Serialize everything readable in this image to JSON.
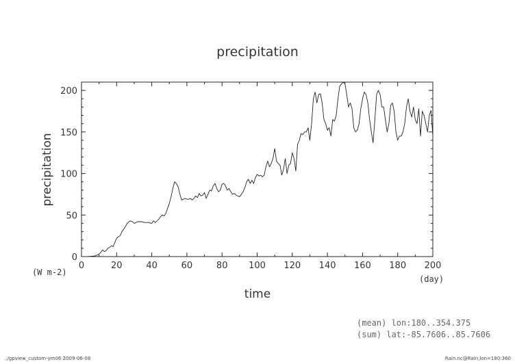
{
  "chart_data": {
    "type": "line",
    "title": "precipitation",
    "xlabel": "time",
    "ylabel": "precipitation",
    "x_unit": "(day)",
    "y_unit": "(W m-2)",
    "xlim": [
      0,
      200
    ],
    "ylim": [
      0,
      210
    ],
    "xticks": [
      0,
      20,
      40,
      60,
      80,
      100,
      120,
      140,
      160,
      180,
      200
    ],
    "yticks": [
      0,
      50,
      100,
      150,
      200
    ],
    "grid": false,
    "series": [
      {
        "x": [
          0,
          2,
          4,
          6,
          8,
          10,
          11,
          12,
          13,
          14,
          15,
          16,
          17,
          18,
          19,
          20,
          21,
          22,
          23,
          24,
          25,
          26,
          27,
          28,
          29,
          30,
          32,
          34,
          36,
          38,
          40,
          41,
          42,
          43,
          44,
          45,
          46,
          47,
          48,
          49,
          50,
          51,
          52,
          53,
          54,
          55,
          56,
          57,
          58,
          59,
          60,
          61,
          62,
          63,
          64,
          65,
          66,
          67,
          68,
          69,
          70,
          71,
          72,
          73,
          74,
          75,
          76,
          77,
          78,
          79,
          80,
          81,
          82,
          83,
          84,
          85,
          86,
          87,
          88,
          89,
          90,
          91,
          92,
          93,
          94,
          95,
          96,
          97,
          98,
          99,
          100,
          101,
          102,
          103,
          104,
          105,
          106,
          107,
          108,
          109,
          110,
          111,
          112,
          113,
          114,
          115,
          116,
          117,
          118,
          119,
          120,
          121,
          122,
          123,
          124,
          125,
          126,
          127,
          128,
          129,
          130,
          131,
          132,
          133,
          134,
          135,
          136,
          137,
          138,
          139,
          140,
          141,
          142,
          143,
          144,
          145,
          146,
          147,
          148,
          149,
          150,
          151,
          152,
          153,
          154,
          155,
          156,
          157,
          158,
          159,
          160,
          161,
          162,
          163,
          164,
          165,
          166,
          167,
          168,
          169,
          170,
          171,
          172,
          173,
          174,
          175,
          176,
          177,
          178,
          179,
          180,
          181,
          182,
          183,
          184,
          185,
          186,
          187,
          188,
          189,
          190,
          191,
          192,
          193,
          194,
          195,
          196,
          197,
          198,
          199,
          200
        ],
        "values": [
          0,
          0,
          0,
          0.5,
          1,
          3,
          5,
          8,
          6,
          7,
          10,
          11,
          13,
          12,
          17,
          22,
          24,
          25,
          30,
          33,
          36,
          40,
          42,
          43,
          42,
          40,
          42,
          42,
          41,
          41,
          40,
          43,
          41,
          43,
          45,
          48,
          50,
          49,
          52,
          58,
          64,
          72,
          82,
          90,
          88,
          84,
          75,
          68,
          69,
          70,
          69,
          69,
          70,
          68,
          70,
          73,
          71,
          76,
          73,
          74,
          77,
          70,
          75,
          80,
          79,
          85,
          88,
          82,
          78,
          80,
          87,
          88,
          85,
          80,
          82,
          78,
          75,
          76,
          74,
          73,
          72,
          75,
          78,
          83,
          90,
          93,
          88,
          92,
          88,
          95,
          99,
          97,
          98,
          96,
          98,
          108,
          115,
          108,
          112,
          118,
          130,
          115,
          112,
          110,
          98,
          105,
          118,
          100,
          110,
          112,
          125,
          118,
          103,
          135,
          140,
          148,
          147,
          150,
          150,
          155,
          140,
          160,
          190,
          198,
          185,
          195,
          196,
          185,
          165,
          160,
          152,
          155,
          145,
          165,
          163,
          170,
          190,
          205,
          208,
          210,
          208,
          195,
          180,
          185,
          178,
          155,
          150,
          152,
          160,
          178,
          190,
          198,
          195,
          185,
          165,
          150,
          137,
          165,
          195,
          200,
          195,
          180,
          180,
          165,
          150,
          160,
          182,
          185,
          175,
          150,
          140,
          145,
          145,
          150,
          160,
          180,
          190,
          175,
          168,
          180,
          165,
          160,
          178,
          145,
          175,
          170,
          160,
          150,
          170,
          176,
          145
        ]
      }
    ],
    "annotations": {
      "mean": "(mean) lon:180..354.375",
      "sum": "(sum) lat:-85.7606..85.7606"
    }
  },
  "footer": {
    "left": "../gpview_custom-ym06  2009-06-08",
    "right": "Rain.nc@Rain,lon=180:360"
  },
  "colors": {
    "line": "#222222",
    "axis": "#222222",
    "note": "#666666"
  }
}
